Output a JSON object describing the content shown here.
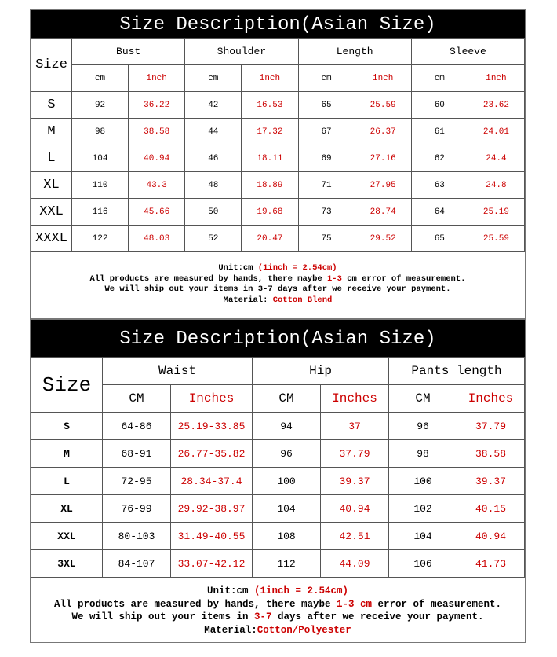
{
  "top_chart": {
    "title": "Size  Description(Asian Size)",
    "size_label": "Size",
    "groups": [
      "Bust",
      "Shoulder",
      "Length",
      "Sleeve"
    ],
    "unit_cm": "cm",
    "unit_inch": "inch",
    "rows": [
      [
        "S",
        "92",
        "36.22",
        "42",
        "16.53",
        "65",
        "25.59",
        "60",
        "23.62"
      ],
      [
        "M",
        "98",
        "38.58",
        "44",
        "17.32",
        "67",
        "26.37",
        "61",
        "24.01"
      ],
      [
        "L",
        "104",
        "40.94",
        "46",
        "18.11",
        "69",
        "27.16",
        "62",
        "24.4"
      ],
      [
        "XL",
        "110",
        "43.3",
        "48",
        "18.89",
        "71",
        "27.95",
        "63",
        "24.8"
      ],
      [
        "XXL",
        "116",
        "45.66",
        "50",
        "19.68",
        "73",
        "28.74",
        "64",
        "25.19"
      ],
      [
        "XXXL",
        "122",
        "48.03",
        "52",
        "20.47",
        "75",
        "29.52",
        "65",
        "25.59"
      ]
    ],
    "notes": {
      "unit_a": "Unit:cm ",
      "unit_b": "(1inch = 2.54cm)",
      "measure_a": "All products are measured by hands, there maybe ",
      "measure_b": "1-3",
      "measure_c": " cm error of measurement.",
      "ship": "We will ship out your items in 3-7 days after we receive your payment.",
      "material_a": "Material: ",
      "material_b": "Cotton Blend"
    }
  },
  "bottom_chart": {
    "title": "Size  Description(Asian Size)",
    "size_label": "Size",
    "groups": [
      "Waist",
      "Hip",
      "Pants length"
    ],
    "unit_cm": "CM",
    "unit_inch": "Inches",
    "rows": [
      [
        "S",
        "64-86",
        "25.19-33.85",
        "94",
        "37",
        "96",
        "37.79"
      ],
      [
        "M",
        "68-91",
        "26.77-35.82",
        "96",
        "37.79",
        "98",
        "38.58"
      ],
      [
        "L",
        "72-95",
        "28.34-37.4",
        "100",
        "39.37",
        "100",
        "39.37"
      ],
      [
        "XL",
        "76-99",
        "29.92-38.97",
        "104",
        "40.94",
        "102",
        "40.15"
      ],
      [
        "XXL",
        "80-103",
        "31.49-40.55",
        "108",
        "42.51",
        "104",
        "40.94"
      ],
      [
        "3XL",
        "84-107",
        "33.07-42.12",
        "112",
        "44.09",
        "106",
        "41.73"
      ]
    ],
    "notes": {
      "unit_a": "Unit:cm ",
      "unit_b": "(1inch = 2.54cm)",
      "measure_a": "All products are measured by hands, there maybe ",
      "measure_b": "1-3 cm",
      "measure_c": " error of measurement.",
      "ship_a": "We will ship out your items in ",
      "ship_b": "3-7",
      "ship_c": " days after we receive your payment.",
      "material_a": "Material:",
      "material_b": "Cotton/Polyester"
    }
  },
  "colors": {
    "accent": "#cc0000",
    "title_bg": "#000000"
  }
}
